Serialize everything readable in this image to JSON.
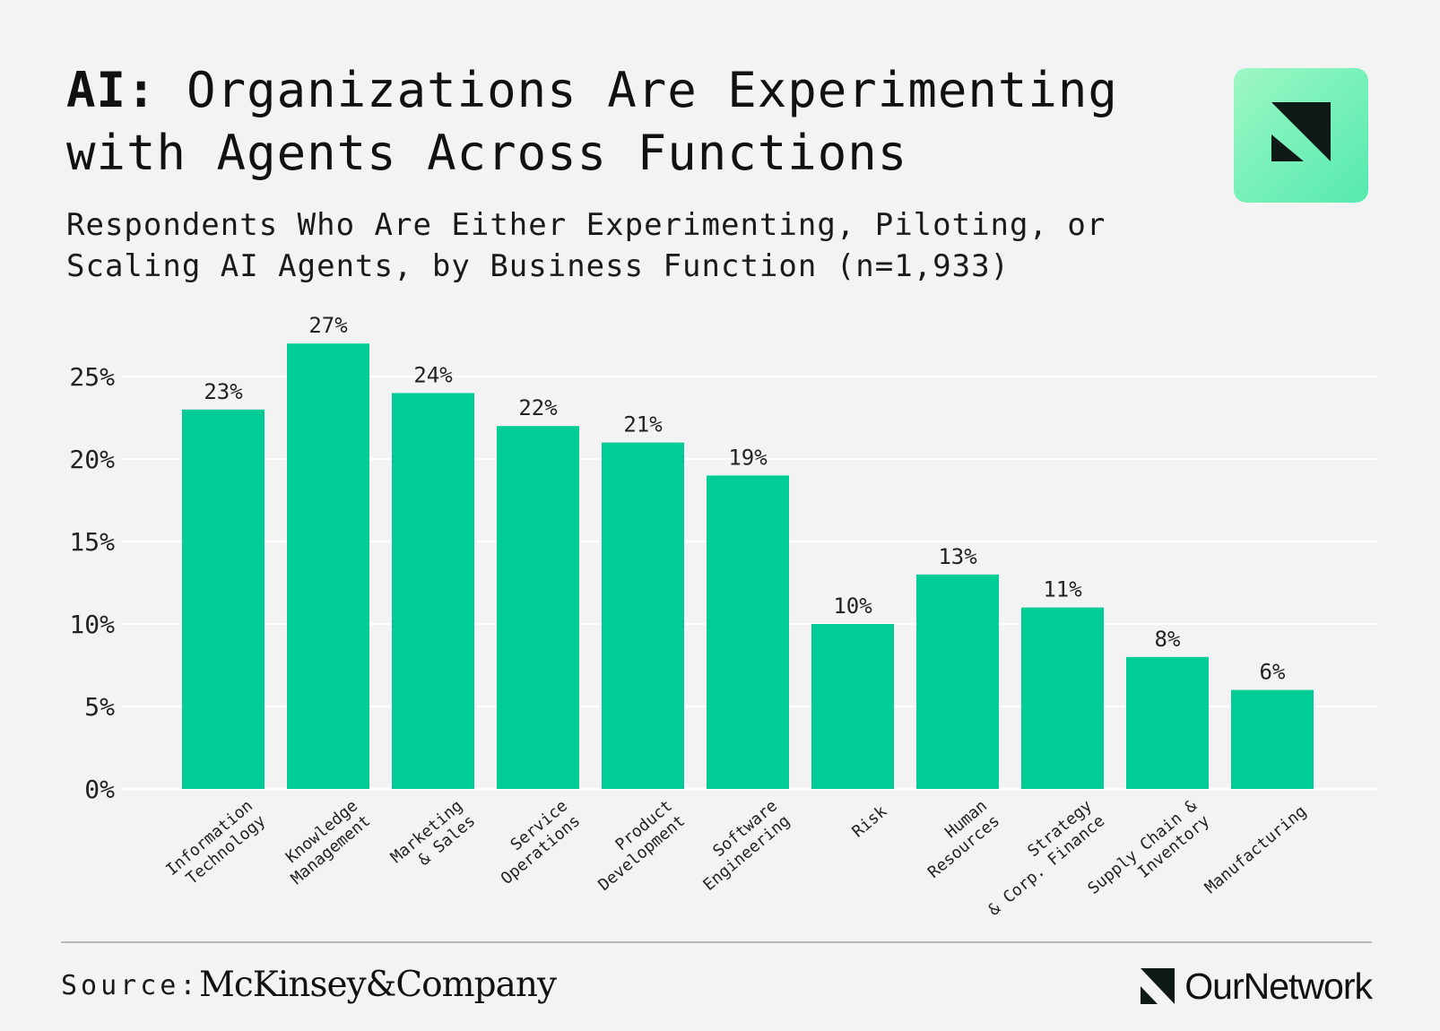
{
  "header": {
    "title_lead": "AI:",
    "title_rest": " Organizations Are Experimenting with Agents Across Functions",
    "subtitle": "Respondents Who Are Either Experimenting, Piloting, or Scaling AI Agents, by Business Function (n=1,933)"
  },
  "brand": {
    "accent": "#00cc96",
    "tile_gradient_start": "#9ef7c5",
    "tile_gradient_end": "#55e9b0",
    "tile_icon": "ournetwork-logo-icon",
    "footer_icon": "ournetwork-logo-icon",
    "footer_name": "OurNetwork"
  },
  "footer": {
    "source_label": "Source:",
    "source_org": "McKinsey&Company"
  },
  "chart_data": {
    "type": "bar",
    "title": "AI: Organizations Are Experimenting with Agents Across Functions",
    "subtitle": "Respondents Who Are Either Experimenting, Piloting, or Scaling AI Agents, by Business Function (n=1,933)",
    "xlabel": "",
    "ylabel": "",
    "ylim": [
      0,
      27
    ],
    "yticks": [
      0,
      5,
      10,
      15,
      20,
      25
    ],
    "ytick_labels": [
      "0%",
      "5%",
      "10%",
      "15%",
      "20%",
      "25%"
    ],
    "grid": true,
    "legend": "none",
    "bar_color": "#00cc96",
    "categories": [
      [
        "Information",
        "Technology"
      ],
      [
        "Knowledge",
        "Management"
      ],
      [
        "Marketing",
        "& Sales"
      ],
      [
        "Service",
        "Operations"
      ],
      [
        "Product",
        "Development"
      ],
      [
        "Software",
        "Engineering"
      ],
      [
        "Risk"
      ],
      [
        "Human",
        "Resources"
      ],
      [
        "Strategy",
        "& Corp. Finance"
      ],
      [
        "Supply Chain &",
        "Inventory"
      ],
      [
        "Manufacturing"
      ]
    ],
    "values": [
      23,
      27,
      24,
      22,
      21,
      19,
      10,
      13,
      11,
      8,
      6
    ],
    "value_labels": [
      "23%",
      "27%",
      "24%",
      "22%",
      "21%",
      "19%",
      "10%",
      "13%",
      "11%",
      "8%",
      "6%"
    ]
  }
}
